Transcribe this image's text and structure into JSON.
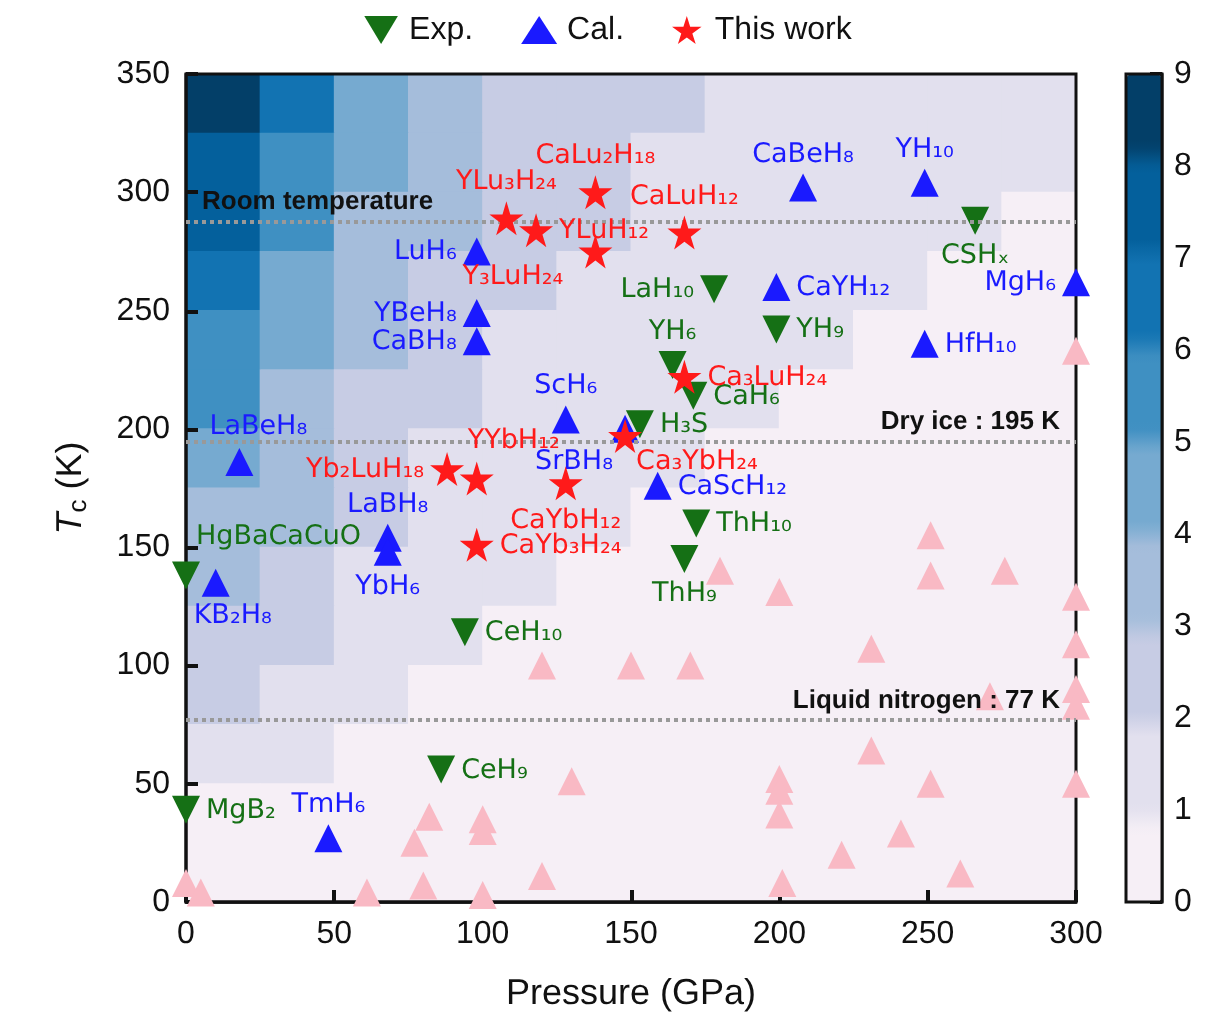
{
  "chart_data": [
    {
      "type": "heatmap",
      "categories": [
        null,
        null,
        null,
        null,
        null,
        null,
        null,
        null,
        null,
        null,
        null,
        null
      ],
      "y_categories": [
        null,
        null,
        null,
        null,
        null,
        null,
        null,
        null,
        null,
        null,
        null,
        null,
        null,
        null
      ],
      "clim": [
        0,
        9
      ],
      "cticks": [
        0,
        1,
        2,
        3,
        4,
        5,
        6,
        7,
        8,
        9
      ],
      "cells": [
        [
          8.5,
          6.5,
          4.5,
          3.5,
          2.5,
          2.5,
          2.5,
          1.5,
          1.5,
          1.5,
          1.5,
          1.5
        ],
        [
          7.5,
          5.5,
          4.5,
          3.5,
          2.5,
          2.5,
          1.5,
          1.5,
          1.5,
          1.5,
          1.5,
          1.5
        ],
        [
          7.5,
          5.5,
          3.5,
          3.5,
          2.5,
          2.5,
          1.5,
          1.5,
          1.5,
          1.5,
          1.5,
          0.5
        ],
        [
          6.5,
          4.5,
          3.5,
          2.5,
          2.5,
          1.5,
          1.5,
          1.5,
          1.5,
          1.5,
          0.5,
          0.5
        ],
        [
          5.5,
          4.5,
          3.5,
          2.5,
          1.5,
          1.5,
          1.5,
          1.5,
          1.5,
          0.5,
          0.5,
          0.5
        ],
        [
          5.5,
          3.5,
          2.5,
          2.5,
          1.5,
          1.5,
          1.5,
          1.5,
          0.5,
          0.5,
          0.5,
          0.5
        ],
        [
          4.5,
          3.5,
          2.5,
          1.5,
          1.5,
          1.5,
          1.5,
          0.5,
          0.5,
          0.5,
          0.5,
          0.5
        ],
        [
          3.5,
          3.5,
          2.5,
          1.5,
          1.5,
          1.5,
          0.5,
          0.5,
          0.5,
          0.5,
          0.5,
          0.5
        ],
        [
          3.5,
          2.5,
          1.5,
          1.5,
          1.5,
          0.5,
          0.5,
          0.5,
          0.5,
          0.5,
          0.5,
          0.5
        ],
        [
          2.5,
          2.5,
          1.5,
          1.5,
          0.5,
          0.5,
          0.5,
          0.5,
          0.5,
          0.5,
          0.5,
          0.5
        ],
        [
          2.5,
          1.5,
          1.5,
          0.5,
          0.5,
          0.5,
          0.5,
          0.5,
          0.5,
          0.5,
          0.5,
          0.5
        ],
        [
          1.5,
          1.5,
          0.5,
          0.5,
          0.5,
          0.5,
          0.5,
          0.5,
          0.5,
          0.5,
          0.5,
          0.5
        ],
        [
          0.5,
          0.5,
          0.5,
          0.5,
          0.5,
          0.5,
          0.5,
          0.5,
          0.5,
          0.5,
          0.5,
          0.5
        ],
        [
          0.5,
          0.5,
          0.5,
          0.5,
          0.5,
          0.5,
          0.5,
          0.5,
          0.5,
          0.5,
          0.5,
          0.5
        ]
      ]
    },
    {
      "type": "scatter",
      "xlabel": "Pressure (GPa)",
      "ylabel": "T$_{c}$ (K)",
      "xlim": [
        0,
        300
      ],
      "xticks": [
        0,
        50,
        100,
        150,
        200,
        250,
        300
      ],
      "ylim": [
        0,
        350
      ],
      "yticks": [
        0,
        50,
        100,
        150,
        200,
        250,
        300,
        350
      ],
      "legend": "top",
      "ref_lines": [
        {
          "axis": "y",
          "value": 288,
          "label": "Room temperature",
          "color": "#999999",
          "line_style": "dotted"
        },
        {
          "axis": "y",
          "value": 195,
          "label": "Dry ice : 195 K",
          "color": "#999999",
          "line_style": "dotted"
        },
        {
          "axis": "y",
          "value": 77,
          "label": "Liquid nitrogen : 77 K",
          "color": "#999999",
          "line_style": "dotted"
        }
      ],
      "series": [
        {
          "marker": "triangle",
          "color": "#f9b9c4",
          "x": [
            0,
            5,
            61,
            77,
            80,
            82,
            100,
            100,
            100,
            120,
            120,
            130,
            150,
            170,
            180,
            200,
            200,
            200,
            200,
            201,
            221,
            231,
            231,
            241,
            251,
            251,
            251,
            261,
            271,
            276,
            300,
            300,
            300,
            300,
            300,
            300
          ],
          "values": [
            8,
            4,
            4,
            25,
            7,
            36,
            35,
            30,
            3,
            11,
            100,
            51,
            100,
            100,
            140,
            131,
            52,
            47,
            37,
            8,
            20,
            107,
            64,
            29,
            155,
            138,
            50,
            12,
            87,
            140,
            233,
            129,
            109,
            90,
            83,
            50
          ]
        },
        {
          "name": "Exp.",
          "marker": "triangle-down",
          "color": "#157015",
          "x": [
            266,
            178,
            199,
            164,
            171,
            153,
            172,
            168,
            94,
            86,
            0,
            0
          ],
          "values": [
            288,
            259,
            242,
            227,
            214,
            202,
            160,
            145,
            114,
            56,
            138,
            39
          ],
          "value_labels": [
            "CSHₓ",
            "LaH₁₀",
            "YH₉",
            "YH₆",
            "CaH₆",
            "H₃S",
            "ThH₁₀",
            "ThH₉",
            "CeH₁₀",
            "CeH₉",
            "HgBaCaCuO",
            "MgB₂"
          ]
        },
        {
          "name": "Cal.",
          "marker": "triangle",
          "color": "#1a1aff",
          "x": [
            208,
            249,
            98,
            98,
            98,
            128,
            18,
            199,
            300,
            249,
            148,
            159,
            68,
            68,
            10,
            48
          ],
          "values": [
            302,
            304,
            275,
            249,
            237,
            204,
            186,
            260,
            262,
            236,
            200,
            176,
            154,
            148,
            135,
            27
          ],
          "value_labels": [
            "CaBeH₈",
            "YH₁₀",
            "LuH₆",
            "YBeH₈",
            "CaBH₈",
            "ScH₆",
            "LaBeH₈",
            "CaYH₁₂",
            "MgH₆",
            "HfH₁₀",
            "SrBH₈",
            "CaScH₁₂",
            "LaBH₈",
            "YbH₆",
            "KB₂H₈",
            "TmH₆"
          ]
        },
        {
          "name": "This work",
          "marker": "star",
          "color": "#ff1a1a",
          "x": [
            138,
            108,
            118,
            138,
            168,
            168,
            148,
            88,
            98,
            128,
            98
          ],
          "values": [
            300,
            289,
            284,
            275,
            283,
            222,
            197,
            183,
            179,
            177,
            151
          ],
          "value_labels": [
            "CaLu₂H₁₈",
            "YLu₃H₂₄",
            "YLuH₁₂",
            "Y₃LuH₂₄",
            "CaLuH₁₂",
            "Ca₃LuH₂₄",
            "Ca₃YbH₂₄",
            "Yb₂LuH₁₈",
            "YYbH₁₂",
            "CaYbH₁₂",
            "CaYb₃H₂₄"
          ]
        }
      ]
    }
  ]
}
